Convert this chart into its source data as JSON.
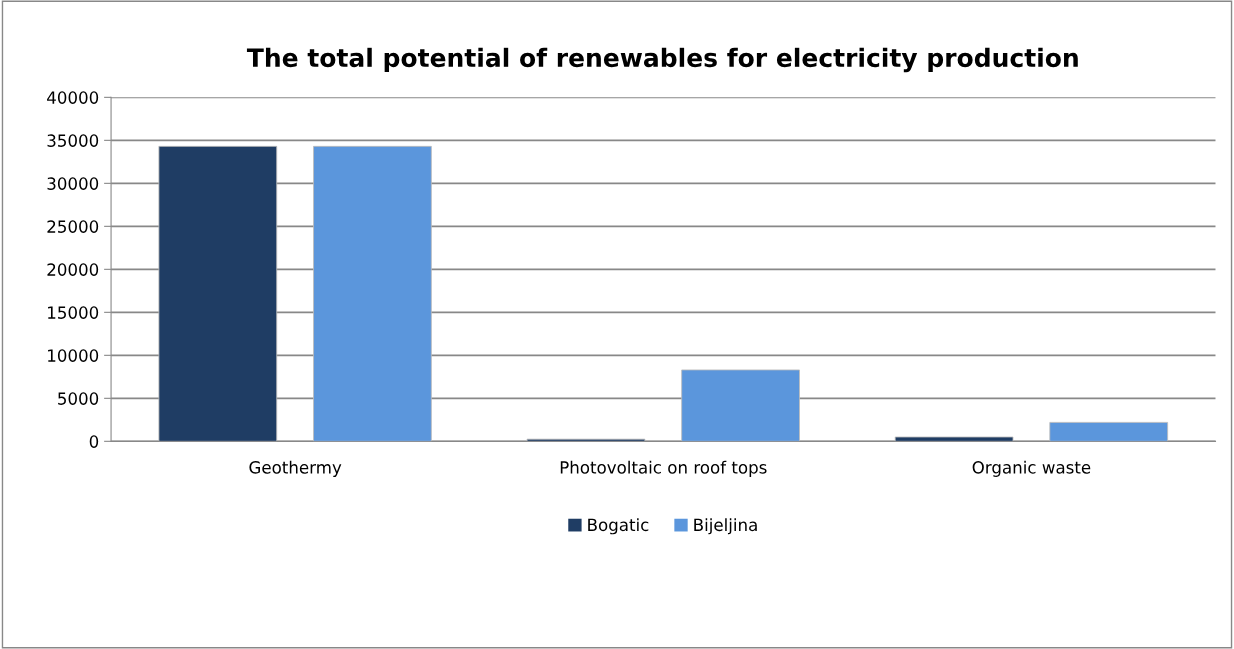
{
  "chart_data": {
    "type": "bar",
    "title": "The total potential of renewables for electricity production",
    "categories": [
      "Geothermy",
      "Photovoltaic on roof tops",
      "Organic waste"
    ],
    "series": [
      {
        "name": "Bogatic",
        "color": "#1f3d64",
        "values": [
          34300,
          250,
          500
        ]
      },
      {
        "name": "Bijeljina",
        "color": "#5b96dc",
        "values": [
          34300,
          8300,
          2200
        ]
      }
    ],
    "ylim": [
      0,
      40000
    ],
    "yticks": [
      0,
      5000,
      10000,
      15000,
      20000,
      25000,
      30000,
      35000,
      40000
    ],
    "grid": "y",
    "legend": "bottom"
  }
}
